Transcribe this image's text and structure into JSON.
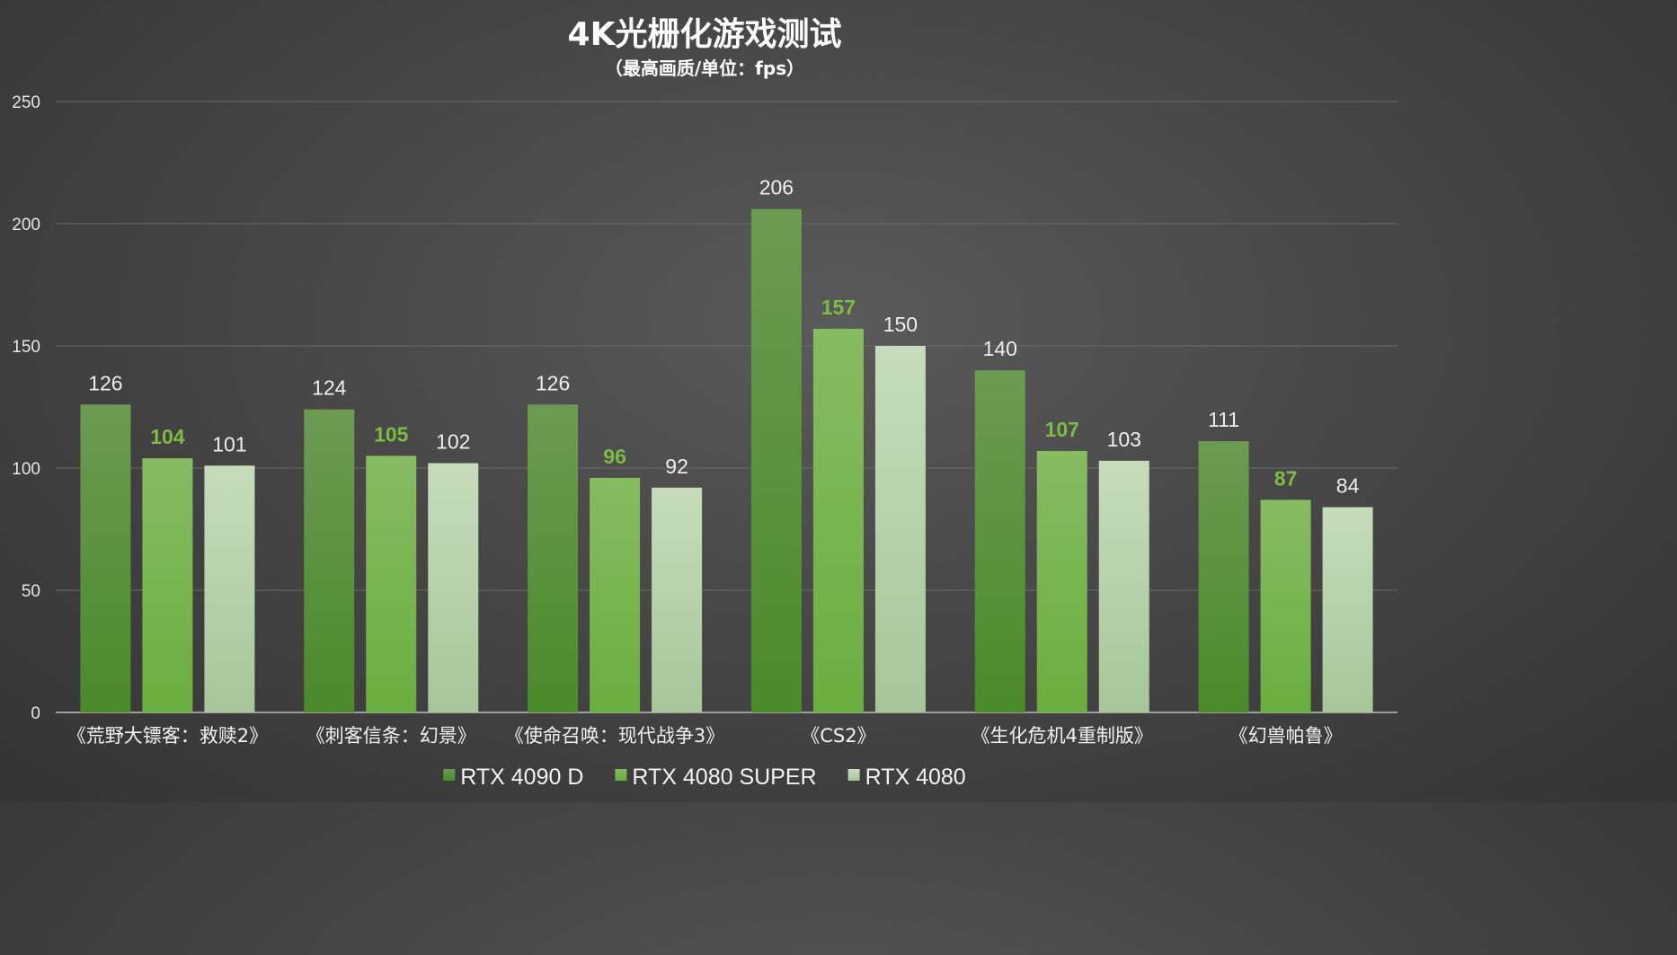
{
  "chart_data": {
    "type": "bar",
    "title": "4K光栅化游戏测试",
    "subtitle": "（最高画质/单位：fps）",
    "categories": [
      "《荒野大镖客：救赎2》",
      "《刺客信条：幻景》",
      "《使命召唤：现代战争3》",
      "《CS2》",
      "《生化危机4重制版》",
      "《幻兽帕鲁》"
    ],
    "series": [
      {
        "name": "RTX 4090 D",
        "values": [
          126,
          124,
          126,
          206,
          140,
          111
        ],
        "color_top": "#6c9a52",
        "color_bottom": "#4a8a2a"
      },
      {
        "name": "RTX 4080 SUPER",
        "values": [
          104,
          105,
          96,
          157,
          107,
          87
        ],
        "color_top": "#86bb62",
        "color_bottom": "#6aae3e"
      },
      {
        "name": "RTX 4080",
        "values": [
          101,
          102,
          92,
          150,
          103,
          84
        ],
        "color_top": "#c6dcbc",
        "color_bottom": "#a6c69a"
      }
    ],
    "ylim": [
      0,
      250
    ],
    "yticks": [
      0,
      50,
      100,
      150,
      200,
      250
    ],
    "highlight_series": 1,
    "highlight_color": "#7dbb44",
    "grid": true,
    "legend_position": "bottom-center"
  }
}
